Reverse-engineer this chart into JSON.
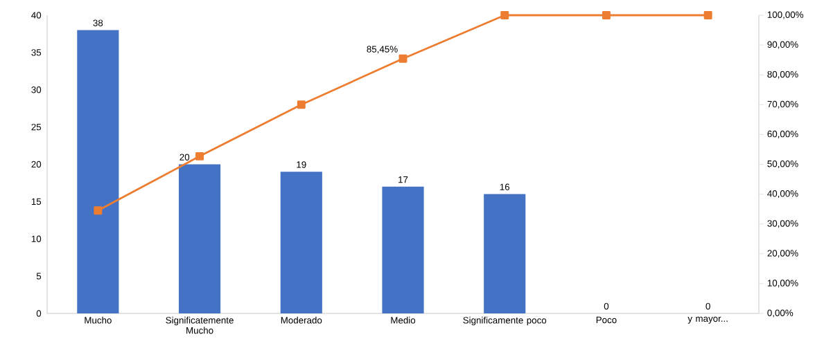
{
  "chart_data": {
    "type": "bar",
    "categories": [
      "Mucho",
      "Significatemente Mucho",
      "Moderado",
      "Medio",
      "Significamente poco",
      "Poco",
      "y mayor..."
    ],
    "series": [
      {
        "color": "#4472c4",
        "values": [
          38,
          20,
          19,
          17,
          16,
          0,
          0
        ],
        "data_labels": true
      },
      {
        "type": "line",
        "axis": "y2",
        "color": "#ed7d31",
        "marker": "square",
        "values": [
          34.5,
          52.7,
          70,
          85.45,
          100,
          100,
          100
        ],
        "value_labels": [
          null,
          null,
          null,
          "85,45%",
          null,
          null,
          null
        ]
      }
    ],
    "ylim": [
      0,
      40
    ],
    "yticks": [
      0,
      5,
      10,
      15,
      20,
      25,
      30,
      35,
      40
    ],
    "y2lim": [
      0,
      100
    ],
    "y2ticks": [
      {
        "value": 0,
        "label": "0,00%"
      },
      {
        "value": 10,
        "label": "10,00%"
      },
      {
        "value": 20,
        "label": "20,00%"
      },
      {
        "value": 30,
        "label": "30,00%"
      },
      {
        "value": 40,
        "label": "40,00%"
      },
      {
        "value": 50,
        "label": "50,00%"
      },
      {
        "value": 60,
        "label": "60,00%"
      },
      {
        "value": 70,
        "label": "70,00%"
      },
      {
        "value": 80,
        "label": "80,00%"
      },
      {
        "value": 90,
        "label": "90,00%"
      },
      {
        "value": 100,
        "label": "100,00%"
      }
    ]
  }
}
